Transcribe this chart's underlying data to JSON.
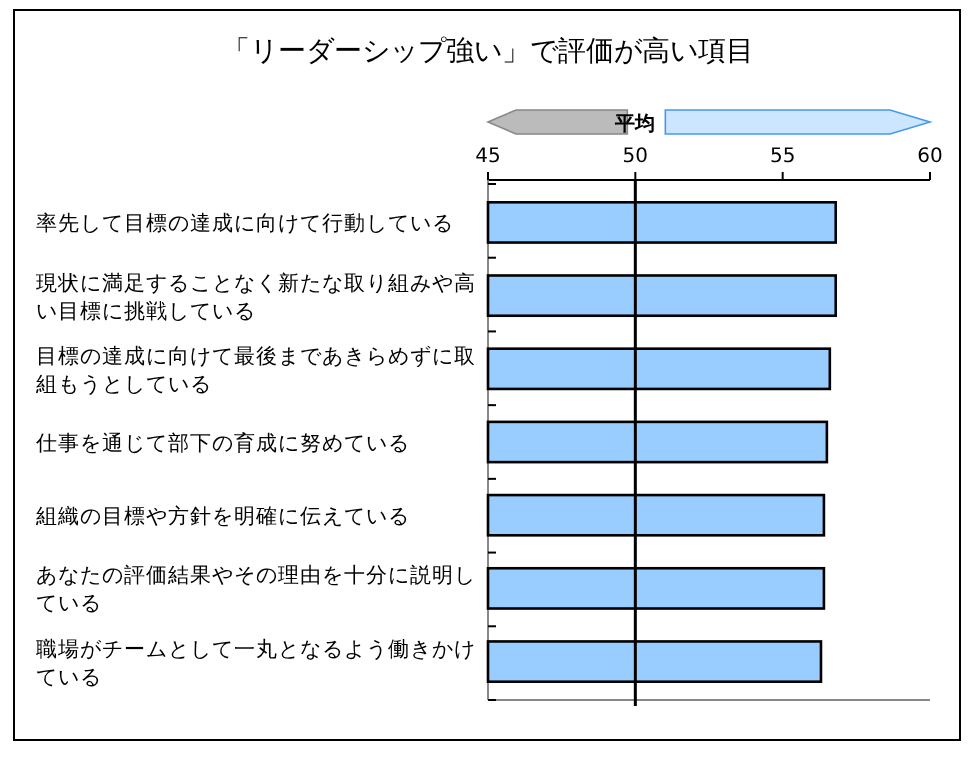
{
  "chart_data": {
    "type": "bar",
    "orientation": "horizontal",
    "title": "「リーダーシップ強い」で評価が高い項目",
    "categories": [
      "率先して目標の達成に向けて行動している",
      "現状に満足することなく新たな取り組みや高い目標に挑戦している",
      "目標の達成に向けて最後まであきらめずに取組もうとしている",
      "仕事を通じて部下の育成に努めている",
      "組織の目標や方針を明確に伝えている",
      "あなたの評価結果やその理由を十分に説明している",
      "職場がチームとして一丸となるよう働きかけている"
    ],
    "values": [
      56.8,
      56.8,
      56.6,
      56.5,
      56.4,
      56.4,
      56.3
    ],
    "color": "#99ccff",
    "xlim": [
      45,
      60
    ],
    "xticks": [
      45,
      50,
      55,
      60
    ],
    "ref_lines": [
      {
        "axis": "x",
        "value": 50,
        "label": "平均",
        "color": "#000000"
      }
    ],
    "grid": false
  }
}
